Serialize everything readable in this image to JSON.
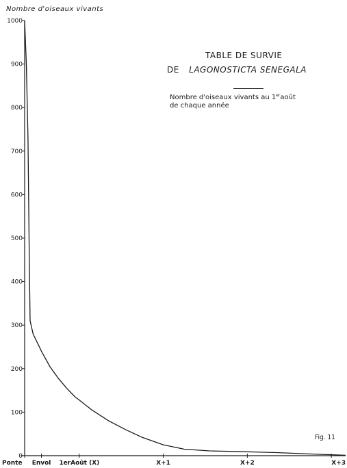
{
  "chart_data": {
    "type": "line",
    "title": "TABLE DE SURVIE",
    "title_prefix": "DE",
    "title_species": "LAGONOSTICTA SENEGALA",
    "subtitle_line1": "Nombre d'oiseaux vivants au 1",
    "subtitle_sup": "er",
    "subtitle_after_sup": "août",
    "subtitle_line2": "de chaque année",
    "ylabel": "Nombre d'oiseaux vivants",
    "figure_label": "Fig. 11",
    "ylim": [
      0,
      1000
    ],
    "xlim": [
      0,
      3.82
    ],
    "y_ticks": [
      0,
      100,
      200,
      300,
      400,
      500,
      600,
      700,
      800,
      900,
      1000
    ],
    "x_ticks": [
      {
        "x": 0.0,
        "label": "Ponte"
      },
      {
        "x": 0.2,
        "label": "Envol"
      },
      {
        "x": 0.65,
        "label": "1erAoût (X)"
      },
      {
        "x": 1.65,
        "label": "X+1"
      },
      {
        "x": 2.65,
        "label": "X+2"
      },
      {
        "x": 3.65,
        "label": "X+3"
      }
    ],
    "series": [
      {
        "points": [
          [
            0.0,
            1000
          ],
          [
            0.02,
            900
          ],
          [
            0.04,
            730
          ],
          [
            0.055,
            450
          ],
          [
            0.065,
            310
          ],
          [
            0.1,
            280
          ],
          [
            0.2,
            240
          ],
          [
            0.3,
            205
          ],
          [
            0.4,
            178
          ],
          [
            0.5,
            155
          ],
          [
            0.6,
            135
          ],
          [
            0.65,
            128
          ],
          [
            0.8,
            105
          ],
          [
            1.0,
            80
          ],
          [
            1.2,
            60
          ],
          [
            1.4,
            42
          ],
          [
            1.65,
            25
          ],
          [
            1.9,
            15
          ],
          [
            2.2,
            11
          ],
          [
            2.65,
            9
          ],
          [
            3.0,
            7
          ],
          [
            3.4,
            4
          ],
          [
            3.82,
            1
          ]
        ]
      }
    ]
  }
}
